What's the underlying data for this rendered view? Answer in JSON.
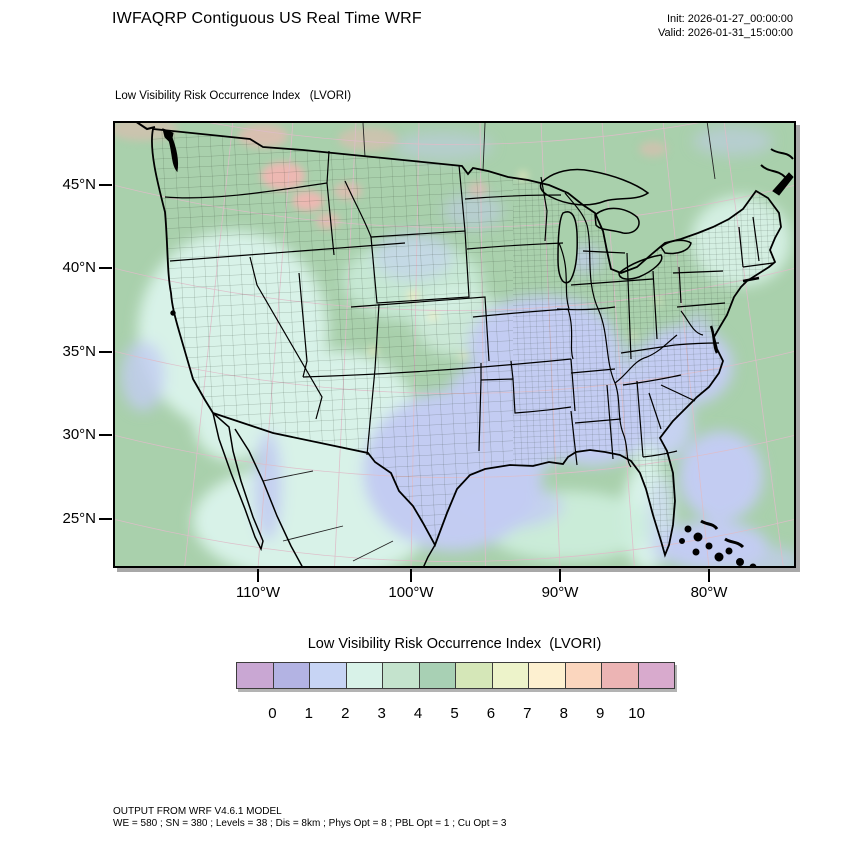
{
  "header": {
    "title": "IWFAQRP Contiguous US Real Time WRF",
    "init": "Init: 2026-01-27_00:00:00",
    "valid": "Valid: 2026-01-31_15:00:00"
  },
  "map": {
    "subtitle": "Low Visibility Risk Occurrence Index   (LVORI)",
    "lat_ticks": [
      "45°N",
      "40°N",
      "35°N",
      "30°N",
      "25°N"
    ],
    "lon_ticks": [
      "110°W",
      "100°W",
      "90°W",
      "80°W"
    ]
  },
  "legend": {
    "title": "Low Visibility Risk Occurrence Index  (LVORI)",
    "tick_labels": [
      "0",
      "1",
      "2",
      "3",
      "4",
      "5",
      "6",
      "7",
      "8",
      "9",
      "10"
    ],
    "colors": [
      "#c9a7d3",
      "#b3b3e3",
      "#c7d4f4",
      "#d8f2e8",
      "#c4e3cd",
      "#a8d0b4",
      "#d5e7b8",
      "#edf3ca",
      "#fdf0d0",
      "#fbd6be",
      "#ecb4b4",
      "#d8aacd"
    ]
  },
  "footer": {
    "line1": "OUTPUT FROM WRF V4.6.1 MODEL",
    "line2": "WE = 580 ; SN = 380 ; Levels = 38 ; Dis = 8km ; Phys Opt = 8 ; PBL Opt = 1 ; Cu Opt = 3"
  }
}
